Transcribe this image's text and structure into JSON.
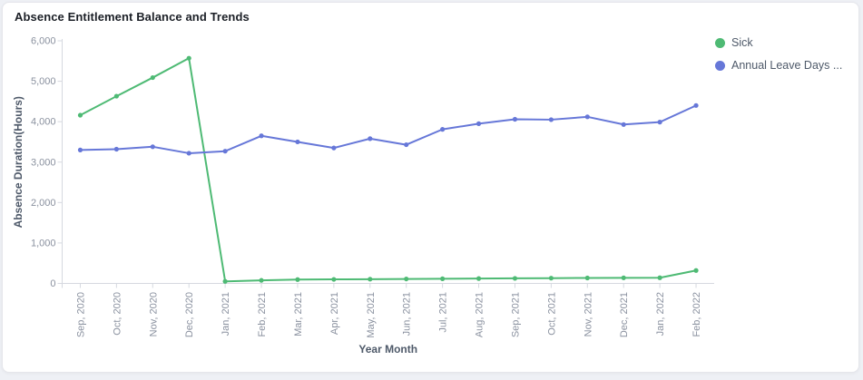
{
  "page": {
    "background_color": "#eef0f5"
  },
  "card": {
    "title": "Absence Entitlement Balance and Trends",
    "background_color": "#ffffff",
    "border_color": "#e5e6eb"
  },
  "chart_data": {
    "type": "line",
    "title": "Absence Entitlement Balance and Trends",
    "xlabel": "Year Month",
    "ylabel": "Absence Duration(Hours)",
    "ylim": [
      0,
      6000
    ],
    "y_tick_values": [
      0,
      1000,
      2000,
      3000,
      4000,
      5000,
      6000
    ],
    "y_tick_labels": [
      "0",
      "1,000",
      "2,000",
      "3,000",
      "4,000",
      "5,000",
      "6,000"
    ],
    "grid": false,
    "legend_position": "top-right",
    "x_tick_rotation_degrees": 90,
    "categories": [
      "Sep, 2020",
      "Oct, 2020",
      "Nov, 2020",
      "Dec, 2020",
      "Jan, 2021",
      "Feb, 2021",
      "Mar, 2021",
      "Apr, 2021",
      "May, 2021",
      "Jun, 2021",
      "Jul, 2021",
      "Aug, 2021",
      "Sep, 2021",
      "Oct, 2021",
      "Nov, 2021",
      "Dec, 2021",
      "Jan, 2022",
      "Feb, 2022"
    ],
    "series": [
      {
        "name": "Sick",
        "color": "#4eba74",
        "values": [
          4160,
          4630,
          5090,
          5570,
          50,
          75,
          95,
          100,
          105,
          110,
          115,
          120,
          125,
          130,
          135,
          138,
          140,
          320
        ]
      },
      {
        "name": "Annual Leave Days ...",
        "color": "#6677d8",
        "values": [
          3300,
          3320,
          3380,
          3220,
          3270,
          3650,
          3500,
          3350,
          3580,
          3430,
          3810,
          3950,
          4060,
          4050,
          4120,
          3930,
          3990,
          4400
        ]
      }
    ],
    "axis_color": "#d6d9e0",
    "tick_label_color": "#8a919f",
    "axis_title_color": "#4e5969"
  }
}
